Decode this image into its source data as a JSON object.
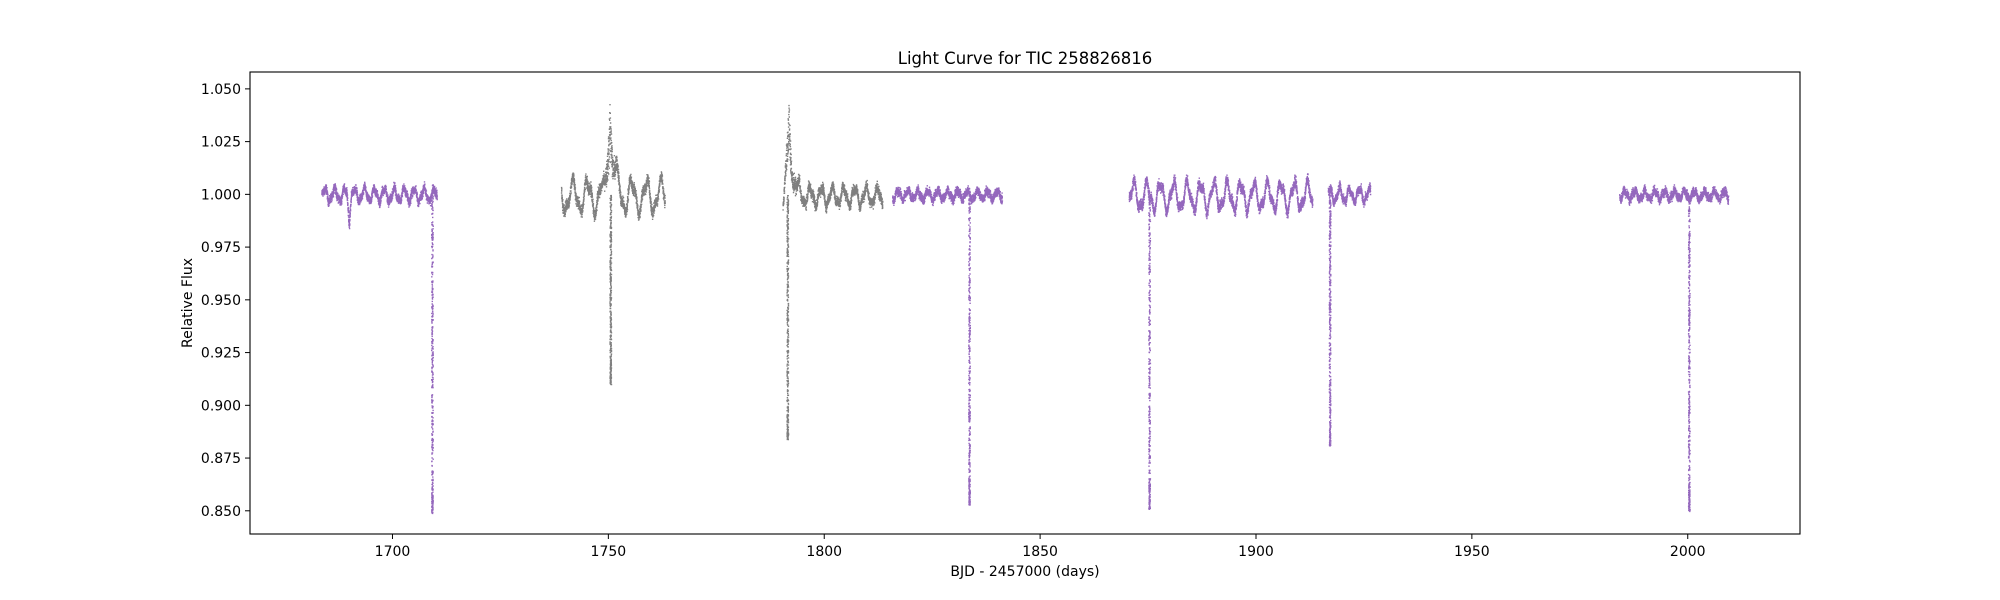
{
  "chart_data": {
    "type": "scatter",
    "title": "Light Curve for TIC 258826816",
    "xlabel": "BJD - 2457000 (days)",
    "ylabel": "Relative Flux",
    "xlim": [
      1667,
      2026
    ],
    "ylim": [
      0.839,
      1.058
    ],
    "xticks": [
      1700,
      1750,
      1800,
      1850,
      1900,
      1950,
      2000
    ],
    "xtick_labels": [
      "1700",
      "1750",
      "1800",
      "1850",
      "1900",
      "1950",
      "2000"
    ],
    "yticks": [
      0.85,
      0.875,
      0.9,
      0.925,
      0.95,
      0.975,
      1.0,
      1.025,
      1.05
    ],
    "ytick_labels": [
      "0.850",
      "0.875",
      "0.900",
      "0.925",
      "0.950",
      "0.975",
      "1.000",
      "1.025",
      "1.050"
    ],
    "grid": false,
    "legend": "none",
    "series": [
      {
        "color": "#9467bd",
        "segments": [
          {
            "start": 1683.5,
            "end": 1710.2,
            "base": 1.0,
            "amp": 0.003,
            "noise": 0.0025,
            "period": 2.3
          },
          {
            "start": 1815.7,
            "end": 1841.1,
            "base": 1.0,
            "amp": 0.002,
            "noise": 0.0025,
            "period": 2.3
          },
          {
            "start": 1870.5,
            "end": 1913.0,
            "base": 0.9995,
            "amp": 0.006,
            "noise": 0.003,
            "period": 3.1
          },
          {
            "start": 1916.6,
            "end": 1926.4,
            "base": 1.0,
            "amp": 0.003,
            "noise": 0.0025,
            "period": 2.3
          },
          {
            "start": 1984.1,
            "end": 2009.3,
            "base": 1.0,
            "amp": 0.002,
            "noise": 0.0025,
            "period": 2.3
          }
        ],
        "dips": [
          {
            "x": 1709.1,
            "min": 0.849
          },
          {
            "x": 1833.5,
            "min": 0.853
          },
          {
            "x": 1875.2,
            "min": 0.851
          },
          {
            "x": 1917.0,
            "min": 0.881
          },
          {
            "x": 2000.2,
            "min": 0.85
          }
        ],
        "features": [
          {
            "x": 1689.8,
            "min": 0.987
          }
        ]
      },
      {
        "color": "#7f7f7f",
        "segments": [
          {
            "start": 1739.0,
            "end": 1763.0,
            "base": 0.9995,
            "amp": 0.007,
            "noise": 0.0035,
            "period": 3.4
          },
          {
            "start": 1790.3,
            "end": 1813.4,
            "base": 0.9995,
            "amp": 0.004,
            "noise": 0.003,
            "period": 2.6
          }
        ],
        "dips": [
          {
            "x": 1750.4,
            "min": 0.91
          },
          {
            "x": 1791.4,
            "min": 0.884
          }
        ],
        "spikes": [
          {
            "x": 1750.2,
            "max": 1.048
          },
          {
            "x": 1791.7,
            "max": 1.04
          }
        ]
      }
    ]
  }
}
